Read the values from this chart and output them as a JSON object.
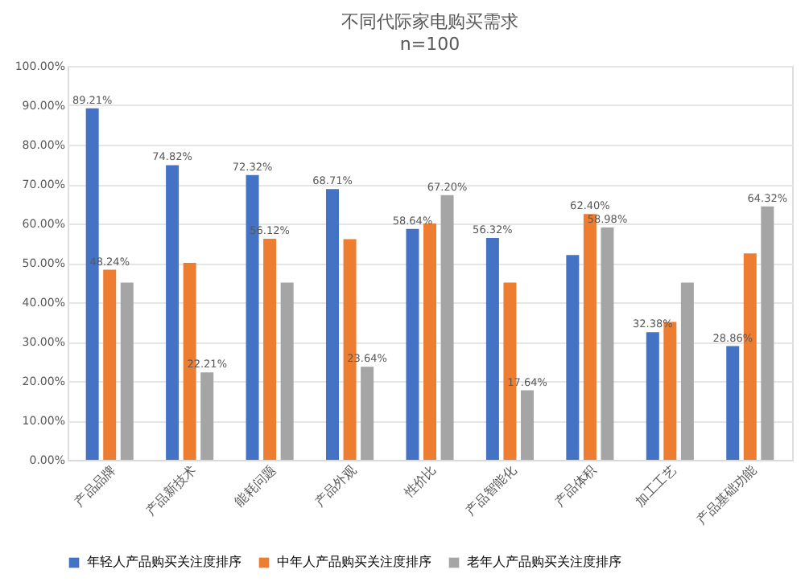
{
  "chart_data": {
    "type": "bar",
    "title": "不同代际家电购买需求",
    "subtitle": "n=100",
    "categories": [
      "产品品牌",
      "产品新技术",
      "能耗问题",
      "产品外观",
      "性价比",
      "产品智能化",
      "产品体积",
      "加工工艺",
      "产品基础功能"
    ],
    "series": [
      {
        "name": "年轻人产品购买关注度排序",
        "color": "#4472c4",
        "values": [
          89.21,
          74.82,
          72.32,
          68.71,
          58.64,
          56.32,
          52,
          32.38,
          28.86
        ],
        "value_labels": [
          "89.21%",
          "74.82%",
          "72.32%",
          "68.71%",
          "58.64%",
          "56.32%",
          null,
          "32.38%",
          "28.86%"
        ]
      },
      {
        "name": "中年人产品购买关注度排序",
        "color": "#ed7d31",
        "values": [
          48.24,
          50,
          56.12,
          56,
          60,
          45,
          62.4,
          35,
          52.4
        ],
        "value_labels": [
          "48.24%",
          null,
          "56.12%",
          null,
          null,
          null,
          "62.40%",
          null,
          null
        ]
      },
      {
        "name": "老年人产品购买关注度排序",
        "color": "#a5a5a5",
        "values": [
          45,
          22.21,
          45,
          23.64,
          67.2,
          17.64,
          58.98,
          45,
          64.32
        ],
        "value_labels": [
          null,
          "22.21%",
          null,
          "23.64%",
          "67.20%",
          "17.64%",
          "58.98%",
          null,
          "64.32%"
        ]
      }
    ],
    "ylim": [
      0,
      100
    ],
    "yticks": [
      {
        "value": 0,
        "label": "0.00%"
      },
      {
        "value": 10,
        "label": "10.00%"
      },
      {
        "value": 20,
        "label": "20.00%"
      },
      {
        "value": 30,
        "label": "30.00%"
      },
      {
        "value": 40,
        "label": "40.00%"
      },
      {
        "value": 50,
        "label": "50.00%"
      },
      {
        "value": 60,
        "label": "60.00%"
      },
      {
        "value": 70,
        "label": "70.00%"
      },
      {
        "value": 80,
        "label": "80.00%"
      },
      {
        "value": 90,
        "label": "90.00%"
      },
      {
        "value": 100,
        "label": "100.00%"
      }
    ],
    "grid": "y",
    "legend": "bottom"
  }
}
